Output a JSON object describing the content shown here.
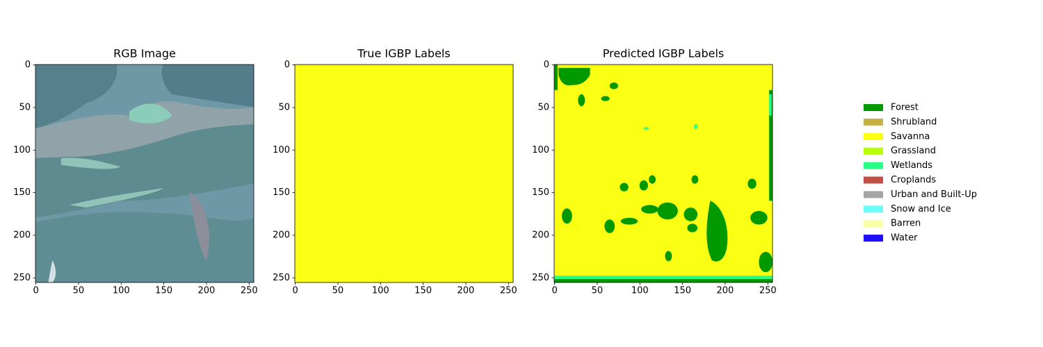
{
  "chart_data": [
    {
      "type": "image",
      "title": "RGB Image",
      "xlim": [
        -0.5,
        255.5
      ],
      "ylim": [
        255.5,
        -0.5
      ],
      "xticks": [
        0,
        50,
        100,
        150,
        200,
        250
      ],
      "yticks": [
        0,
        50,
        100,
        150,
        200,
        250
      ]
    },
    {
      "type": "image",
      "title": "True IGBP Labels",
      "xlim": [
        -0.5,
        255.5
      ],
      "ylim": [
        255.5,
        -0.5
      ],
      "xticks": [
        0,
        50,
        100,
        150,
        200,
        250
      ],
      "yticks": [
        0,
        50,
        100,
        150,
        200,
        250
      ]
    },
    {
      "type": "image",
      "title": "Predicted IGBP Labels",
      "xlim": [
        -0.5,
        255.5
      ],
      "ylim": [
        255.5,
        -0.5
      ],
      "xticks": [
        0,
        50,
        100,
        150,
        200,
        250
      ],
      "yticks": [
        0,
        50,
        100,
        150,
        200,
        250
      ]
    }
  ],
  "legend": {
    "items": [
      {
        "name": "Forest",
        "color": "#009900"
      },
      {
        "name": "Shrubland",
        "color": "#c6b044"
      },
      {
        "name": "Savanna",
        "color": "#fbff13"
      },
      {
        "name": "Grassland",
        "color": "#b6ff05"
      },
      {
        "name": "Wetlands",
        "color": "#27ff87"
      },
      {
        "name": "Croplands",
        "color": "#c24f44"
      },
      {
        "name": "Urban and Built-Up",
        "color": "#a5a5a5"
      },
      {
        "name": "Snow and Ice",
        "color": "#69fff8"
      },
      {
        "name": "Barren",
        "color": "#f9ffa4"
      },
      {
        "name": "Water",
        "color": "#1c0dff"
      }
    ]
  }
}
